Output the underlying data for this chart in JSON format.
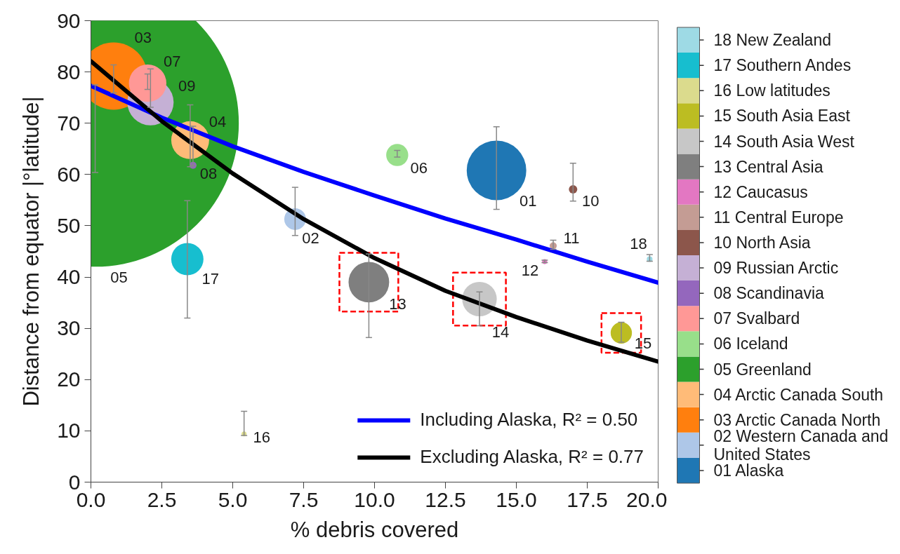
{
  "chart_data": {
    "type": "bubble",
    "xlabel": "% debris covered",
    "ylabel": "Distance from equator |°latitude|",
    "xlim": [
      0,
      20
    ],
    "ylim": [
      0,
      90
    ],
    "xticks": [
      {
        "value": 0,
        "label": "0.0"
      },
      2.5,
      {
        "value": 5,
        "label": "5.0"
      },
      7.5,
      {
        "value": 10,
        "label": "10.0"
      },
      12.5,
      {
        "value": 15,
        "label": "15.0"
      },
      17.5,
      {
        "value": 20,
        "label": "20.0"
      }
    ],
    "yticks": [
      0,
      10,
      20,
      30,
      40,
      50,
      60,
      70,
      80,
      90
    ],
    "legend": "bottom right",
    "series": [
      {
        "name": "01 Alaska",
        "color": "#1f77b4",
        "x": [
          14.3
        ],
        "values": [
          60.8
        ],
        "sizes": [
          0.043
        ],
        "errors": [
          [
            53.2,
            69.3
          ]
        ]
      },
      {
        "name": "02 Western  Canada and United States",
        "color": "#aec7e8",
        "x": [
          7.2
        ],
        "values": [
          51.3
        ],
        "sizes": [
          0.0057
        ],
        "errors": [
          [
            48.1,
            57.5
          ]
        ]
      },
      {
        "name": "03 Arctic Canada North",
        "color": "#ff7f0e",
        "x": [
          0.8
        ],
        "values": [
          79.2
        ],
        "sizes": [
          0.055
        ],
        "errors": [
          [
            75.9,
            81.4
          ]
        ]
      },
      {
        "name": "04 Arctic Canada South",
        "color": "#ffbb78",
        "x": [
          3.5
        ],
        "values": [
          66.7
        ],
        "sizes": [
          0.0174
        ],
        "errors": [
          [
            61.5,
            73.6
          ]
        ]
      },
      {
        "name": "05 Greenland",
        "color": "#2ca02c",
        "x": [
          0.15
        ],
        "values": [
          70.0
        ],
        "sizes": [
          1
        ],
        "errors": [
          [
            60.4,
            77.5
          ]
        ]
      },
      {
        "name": "06 Iceland",
        "color": "#98df8a",
        "x": [
          10.8
        ],
        "values": [
          63.8
        ],
        "sizes": [
          0.0059
        ],
        "errors": [
          [
            63.4,
            64.7
          ]
        ]
      },
      {
        "name": "07 Svalbard",
        "color": "#ff9896",
        "x": [
          2.0
        ],
        "values": [
          77.8
        ],
        "sizes": [
          0.017
        ],
        "errors": [
          [
            76.6,
            79.6
          ]
        ]
      },
      {
        "name": "08 Scandinavia",
        "color": "#9467bd",
        "x": [
          3.6
        ],
        "values": [
          61.8
        ],
        "sizes": [
          0.0006
        ],
        "errors": [
          [
            61.8,
            69.4
          ]
        ]
      },
      {
        "name": "09 Russian Arctic",
        "color": "#c5b0d5",
        "x": [
          2.1
        ],
        "values": [
          74.1
        ],
        "sizes": [
          0.026
        ],
        "errors": [
          [
            73.1,
            80.6
          ]
        ]
      },
      {
        "name": "10 North Asia",
        "color": "#8c564b",
        "x": [
          17.0
        ],
        "values": [
          57.1
        ],
        "sizes": [
          0.00086
        ],
        "errors": [
          [
            54.8,
            62.2
          ]
        ]
      },
      {
        "name": "11 Central Europe",
        "color": "#c49c94",
        "x": [
          16.3
        ],
        "values": [
          46.1
        ],
        "sizes": [
          0.0006
        ],
        "errors": [
          [
            45.4,
            47.2
          ]
        ]
      },
      {
        "name": "12 Caucasus",
        "color": "#e377c2",
        "x": [
          16.0
        ],
        "values": [
          43.0
        ],
        "sizes": [
          0.0003
        ],
        "errors": [
          [
            42.8,
            43.3
          ]
        ]
      },
      {
        "name": "13 Central Asia",
        "color": "#7f7f7f",
        "x": [
          9.8
        ],
        "values": [
          39.0
        ],
        "sizes": [
          0.02
        ],
        "errors": [
          [
            28.2,
            44.5
          ]
        ],
        "line_style": "dashed"
      },
      {
        "name": "14 South Asia West",
        "color": "#c7c7c7",
        "x": [
          13.7
        ],
        "values": [
          35.7
        ],
        "sizes": [
          0.0145
        ],
        "errors": [
          [
            30.5,
            37.1
          ]
        ],
        "line_style": "dashed"
      },
      {
        "name": "15 South Asia East",
        "color": "#bcbd22",
        "x": [
          18.7
        ],
        "values": [
          29.1
        ],
        "sizes": [
          0.0055
        ],
        "errors": [
          [
            27.3,
            31.2
          ]
        ],
        "line_style": "dashed"
      },
      {
        "name": "16 Low latitudes",
        "color": "#dbdb8d",
        "x": [
          5.4
        ],
        "values": [
          9.4
        ],
        "sizes": [
          0.0003
        ],
        "errors": [
          [
            9.1,
            13.8
          ]
        ]
      },
      {
        "name": "17 Southern Andes",
        "color": "#17becf",
        "x": [
          3.4
        ],
        "values": [
          43.5
        ],
        "sizes": [
          0.0126
        ],
        "errors": [
          [
            32.0,
            54.9
          ]
        ]
      },
      {
        "name": "18 New Zealand",
        "color": "#9edae5",
        "x": [
          19.7
        ],
        "values": [
          43.5
        ],
        "sizes": [
          0.0004
        ],
        "errors": [
          [
            43.1,
            44.4
          ]
        ]
      },
      {
        "type": "line",
        "name": "Including Alaska, R² = 0.50",
        "color": "#0000ff",
        "x": [
          0,
          2.5,
          5,
          7.5,
          10,
          12.5,
          15,
          17.5,
          20
        ],
        "values": [
          77.3,
          71.1,
          65.5,
          60.5,
          55.9,
          51.4,
          47.3,
          43.0,
          38.9
        ]
      },
      {
        "type": "line",
        "name": "Excluding Alaska, R² = 0.77",
        "color": "#000000",
        "x": [
          0,
          2.5,
          5,
          7.5,
          10,
          12.5,
          15,
          17.5,
          20
        ],
        "values": [
          82.1,
          70.4,
          60.2,
          51.3,
          43.7,
          37.3,
          32.2,
          27.6,
          23.5
        ]
      }
    ],
    "annotations": [
      {
        "text": "01",
        "x": 14.3,
        "y": 60.8
      },
      {
        "text": "02",
        "x": 7.2,
        "y": 51.3
      },
      {
        "text": "03",
        "x": 0.8,
        "y": 79.2
      },
      {
        "text": "04",
        "x": 3.5,
        "y": 66.7
      },
      {
        "text": "05",
        "x": 0.15,
        "y": 42.1
      },
      {
        "text": "06",
        "x": 10.8,
        "y": 63.8
      },
      {
        "text": "07",
        "x": 2.0,
        "y": 77.8
      },
      {
        "text": "08",
        "x": 3.6,
        "y": 61.8
      },
      {
        "text": "09",
        "x": 2.1,
        "y": 74.1
      },
      {
        "text": "10",
        "x": 17.0,
        "y": 57.1
      },
      {
        "text": "11",
        "x": 16.3,
        "y": 46.1
      },
      {
        "text": "12",
        "x": 16.0,
        "y": 43.0
      },
      {
        "text": "13",
        "x": 9.8,
        "y": 39.0
      },
      {
        "text": "14",
        "x": 13.7,
        "y": 35.7
      },
      {
        "text": "15",
        "x": 18.7,
        "y": 29.1
      },
      {
        "text": "16",
        "x": 5.4,
        "y": 9.4
      },
      {
        "text": "17",
        "x": 3.4,
        "y": 43.5
      },
      {
        "text": "18",
        "x": 19.7,
        "y": 43.5
      }
    ]
  }
}
